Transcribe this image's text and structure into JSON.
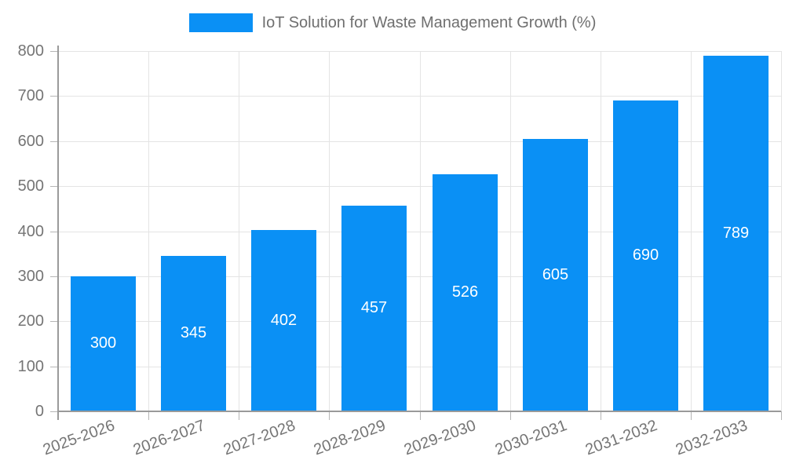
{
  "legend": {
    "series_label": "IoT Solution for Waste Management Growth (%)"
  },
  "chart_data": {
    "type": "bar",
    "title": "IoT Solution for Waste Management Growth (%)",
    "categories": [
      "2025-2026",
      "2026-2027",
      "2027-2028",
      "2028-2029",
      "2029-2030",
      "2030-2031",
      "2031-2032",
      "2032-2033"
    ],
    "series": [
      {
        "name": "IoT Solution for Waste Management Growth (%)",
        "values": [
          300,
          345,
          402,
          457,
          526,
          605,
          690,
          789
        ]
      }
    ],
    "value_labels": [
      "300",
      "345",
      "402",
      "457",
      "526",
      "605",
      "690",
      "789"
    ],
    "xlabel": "",
    "ylabel": "",
    "ylim": [
      0,
      800
    ],
    "yticks": [
      0,
      100,
      200,
      300,
      400,
      500,
      600,
      700,
      800
    ],
    "grid": true,
    "legend_position": "top",
    "x_label_rotation_deg": -20,
    "colors": {
      "bar": "#0a90f5",
      "value_label": "#ffffff",
      "axis_text": "#757575",
      "legend_text": "#6f6f6f",
      "gridline": "#e4e4e4",
      "axis_line": "#9a9a9a",
      "tick": "#b5b5b5",
      "background": "#ffffff"
    }
  }
}
